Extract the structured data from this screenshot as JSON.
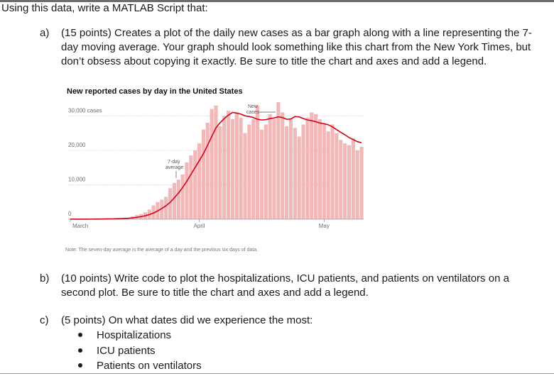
{
  "intro": "Using this data, write a MATLAB Script that:",
  "part_a": {
    "letter": "a)",
    "text": "(15 points) Creates a plot of the daily new cases as a bar graph along with a line representing the 7-day moving average. Your graph should look something like this chart from the New York Times, but don’t obsess about copying it exactly. Be sure to title the chart and axes and add a legend."
  },
  "part_b": {
    "letter": "b)",
    "text": "(10 points) Write code to plot the hospitalizations, ICU patients, and patients on ventilators on a second plot. Be sure to title the chart and axes and add a legend."
  },
  "part_c": {
    "letter": "c)",
    "text": "(5 points) On what dates did we experience the most:",
    "bullets": [
      "Hospitalizations",
      "ICU patients",
      "Patients on ventilators"
    ]
  },
  "colors": {
    "bar": "#f2b8b8",
    "line": "#d0021b",
    "grid": "#cfcfcf",
    "baseline": "#9a9a9a"
  },
  "chart_data": {
    "type": "bar",
    "title": "New reported cases by day in the United States",
    "note": "Note: The seven-day average is the average of a day and the previous six days of data.",
    "ylim": [
      0,
      35000
    ],
    "y_ticks": [
      {
        "value": 0,
        "label": "0"
      },
      {
        "value": 10000,
        "label": "10,000"
      },
      {
        "value": 20000,
        "label": "20,000"
      },
      {
        "value": 30000,
        "label": "30,000 cases"
      }
    ],
    "x_ticks": [
      {
        "index": 0,
        "label": "March"
      },
      {
        "index": 31,
        "label": "April"
      },
      {
        "index": 61,
        "label": "May"
      }
    ],
    "annotations": {
      "bars_label": [
        "New",
        "cases"
      ],
      "line_label": [
        "7-day",
        "average"
      ]
    },
    "grid": true,
    "series": [
      {
        "name": "New cases",
        "type": "bar",
        "values": [
          20,
          5,
          10,
          30,
          25,
          60,
          80,
          100,
          120,
          180,
          200,
          250,
          300,
          400,
          500,
          800,
          1200,
          1500,
          2000,
          2800,
          4000,
          5000,
          5700,
          6500,
          9000,
          10500,
          11500,
          13000,
          16500,
          18500,
          20000,
          22000,
          26000,
          28000,
          32000,
          33000,
          27000,
          30000,
          31500,
          29000,
          31000,
          29500,
          25000,
          27500,
          29000,
          33000,
          26000,
          27500,
          30500,
          29000,
          34000,
          31000,
          27000,
          29000,
          26500,
          24000,
          27500,
          29500,
          31000,
          30500,
          29000,
          27500,
          25500,
          27500,
          25000,
          23000,
          22000,
          21500,
          23500,
          20000,
          21000
        ]
      },
      {
        "name": "7-day average",
        "type": "line",
        "values": [
          20,
          15,
          14,
          18,
          20,
          25,
          32,
          45,
          60,
          80,
          105,
          135,
          170,
          220,
          280,
          400,
          560,
          750,
          1000,
          1350,
          1800,
          2400,
          3100,
          3900,
          4900,
          6200,
          7600,
          9200,
          11000,
          13000,
          15000,
          17000,
          19000,
          21500,
          24000,
          26500,
          28000,
          29200,
          30200,
          31000,
          30800,
          30500,
          30000,
          29800,
          29500,
          29000,
          28800,
          28900,
          29200,
          29400,
          29700,
          29500,
          29000,
          29100,
          29800,
          29700,
          29200,
          28800,
          28600,
          28300,
          27900,
          27700,
          27400,
          26800,
          26000,
          25200,
          24500,
          23700,
          23100,
          22500,
          22200
        ]
      }
    ]
  }
}
